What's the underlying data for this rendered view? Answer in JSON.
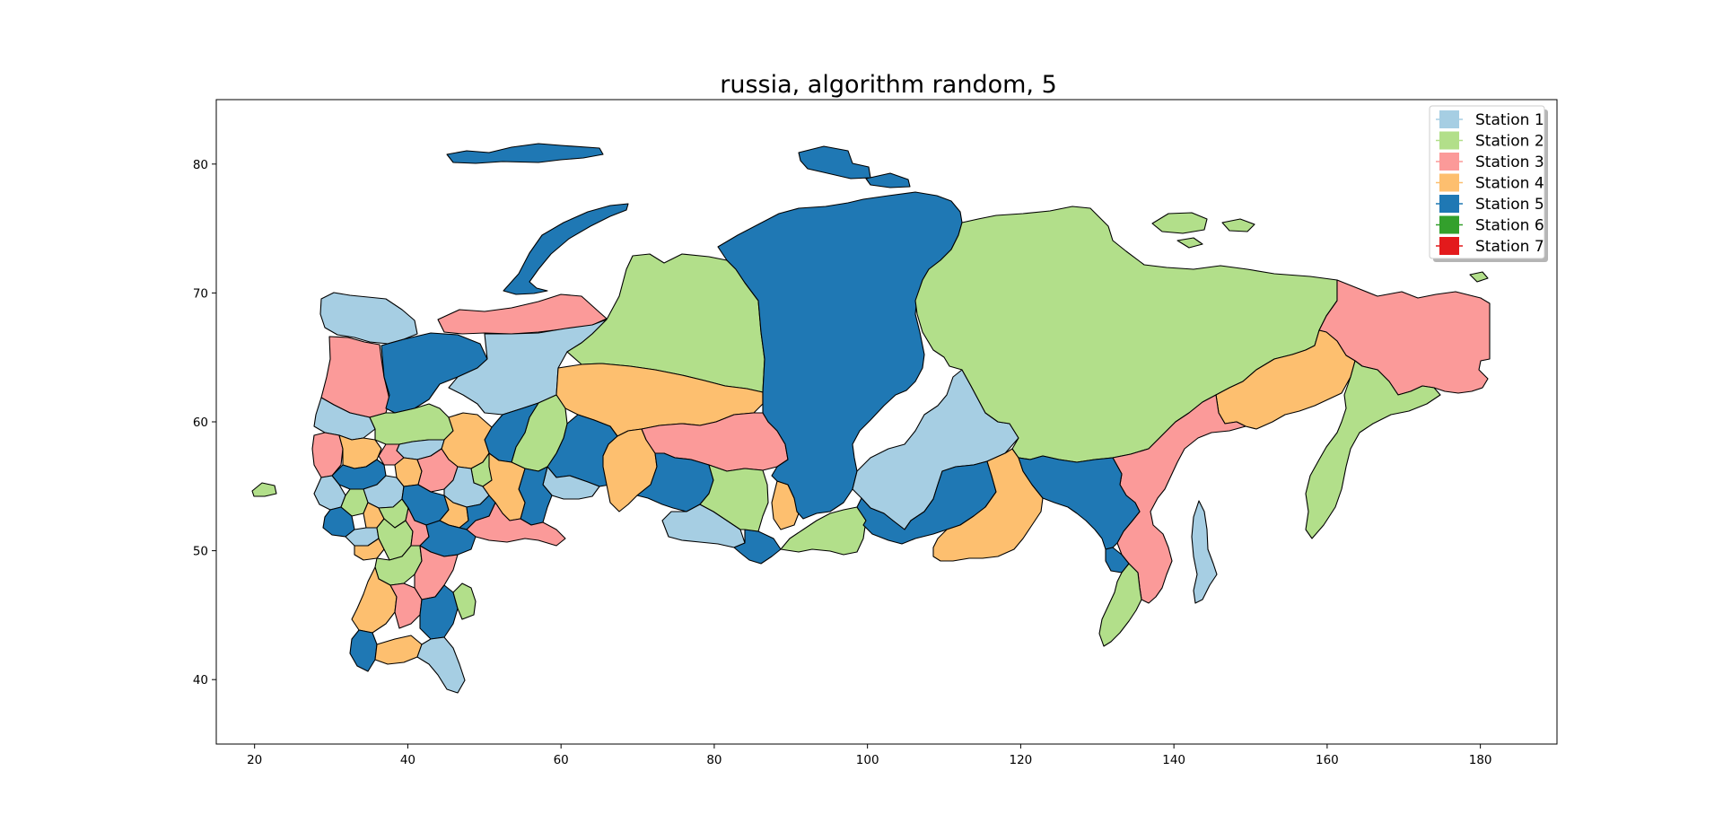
{
  "title": "russia, algorithm random, 5",
  "axes": {
    "x_ticks": [
      "20",
      "40",
      "60",
      "80",
      "100",
      "120",
      "140",
      "160",
      "180"
    ],
    "y_ticks": [
      "40",
      "50",
      "60",
      "70",
      "80"
    ],
    "xlim": [
      15,
      190
    ],
    "ylim": [
      35,
      85
    ]
  },
  "legend": {
    "placement": "top-right",
    "items": [
      {
        "label": "Station 1",
        "color": "#a6cee3"
      },
      {
        "label": "Station 2",
        "color": "#b2df8a"
      },
      {
        "label": "Station 3",
        "color": "#fb9a99"
      },
      {
        "label": "Station 4",
        "color": "#fdbf6f"
      },
      {
        "label": "Station 5",
        "color": "#1f78b4"
      },
      {
        "label": "Station 6",
        "color": "#33a02c"
      },
      {
        "label": "Station 7",
        "color": "#e31a1c"
      }
    ]
  },
  "regions": [
    {
      "name": "novaya-zemlya",
      "station": 5
    },
    {
      "name": "severnaya-zemlya",
      "station": 5
    },
    {
      "name": "franz-josef-land",
      "station": 5
    },
    {
      "name": "new-siberian-islands",
      "station": 2
    },
    {
      "name": "wrangel-island",
      "station": 2
    },
    {
      "name": "kaliningrad",
      "station": 2
    },
    {
      "name": "murmansk",
      "station": 1
    },
    {
      "name": "karelia",
      "station": 3
    },
    {
      "name": "arkhangelsk",
      "station": 5
    },
    {
      "name": "nenets",
      "station": 3
    },
    {
      "name": "komi",
      "station": 1
    },
    {
      "name": "yamal-nenets",
      "station": 2
    },
    {
      "name": "khanty-mansi",
      "station": 4
    },
    {
      "name": "krasnoyarsk",
      "station": 5
    },
    {
      "name": "sakha-yakutia",
      "station": 2
    },
    {
      "name": "chukotka",
      "station": 3
    },
    {
      "name": "magadan",
      "station": 4
    },
    {
      "name": "kamchatka",
      "station": 2
    },
    {
      "name": "khabarovsk",
      "station": 3
    },
    {
      "name": "amur",
      "station": 5
    },
    {
      "name": "primorsky",
      "station": 2
    },
    {
      "name": "sakhalin",
      "station": 1
    },
    {
      "name": "zabaykalsky",
      "station": 4
    },
    {
      "name": "buryatia",
      "station": 5
    },
    {
      "name": "irkutsk",
      "station": 1
    },
    {
      "name": "tuva",
      "station": 2
    },
    {
      "name": "tomsk",
      "station": 3
    },
    {
      "name": "novosibirsk",
      "station": 5
    },
    {
      "name": "omsk",
      "station": 4
    },
    {
      "name": "altai-krai",
      "station": 1
    },
    {
      "name": "altai-republic",
      "station": 5
    },
    {
      "name": "kemerovo",
      "station": 2
    },
    {
      "name": "khakassia",
      "station": 4
    },
    {
      "name": "tyumen",
      "station": 5
    },
    {
      "name": "kurgan",
      "station": 1
    },
    {
      "name": "sverdlovsk",
      "station": 2
    },
    {
      "name": "chelyabinsk",
      "station": 5
    },
    {
      "name": "bashkortostan",
      "station": 4
    },
    {
      "name": "orenburg",
      "station": 3
    },
    {
      "name": "perm",
      "station": 5
    },
    {
      "name": "kirov",
      "station": 4
    },
    {
      "name": "udmurtia",
      "station": 2
    },
    {
      "name": "tatarstan",
      "station": 1
    },
    {
      "name": "vologda",
      "station": 2
    },
    {
      "name": "leningrad",
      "station": 1
    },
    {
      "name": "pskov",
      "station": 3
    },
    {
      "name": "novgorod",
      "station": 4
    },
    {
      "name": "tver",
      "station": 5
    },
    {
      "name": "moscow",
      "station": 1
    },
    {
      "name": "yaroslavl",
      "station": 3
    },
    {
      "name": "kostroma",
      "station": 1
    },
    {
      "name": "nizhny-novgorod",
      "station": 3
    },
    {
      "name": "smolensk",
      "station": 1
    },
    {
      "name": "bryansk",
      "station": 5
    },
    {
      "name": "kaluga",
      "station": 2
    },
    {
      "name": "tula",
      "station": 4
    },
    {
      "name": "ryazan",
      "station": 2
    },
    {
      "name": "vladimir",
      "station": 4
    },
    {
      "name": "penza",
      "station": 5
    },
    {
      "name": "ulyanovsk",
      "station": 4
    },
    {
      "name": "samara",
      "station": 5
    },
    {
      "name": "saratov",
      "station": 5
    },
    {
      "name": "kursk",
      "station": 1
    },
    {
      "name": "belgorod",
      "station": 4
    },
    {
      "name": "voronezh",
      "station": 2
    },
    {
      "name": "tambov",
      "station": 3
    },
    {
      "name": "rostov",
      "station": 2
    },
    {
      "name": "volgograd",
      "station": 3
    },
    {
      "name": "krasnodar",
      "station": 4
    },
    {
      "name": "stavropol",
      "station": 3
    },
    {
      "name": "kalmykia",
      "station": 5
    },
    {
      "name": "astrakhan",
      "station": 2
    },
    {
      "name": "dagestan",
      "station": 1
    },
    {
      "name": "adygea",
      "station": 5
    },
    {
      "name": "chechnya",
      "station": 4
    }
  ]
}
